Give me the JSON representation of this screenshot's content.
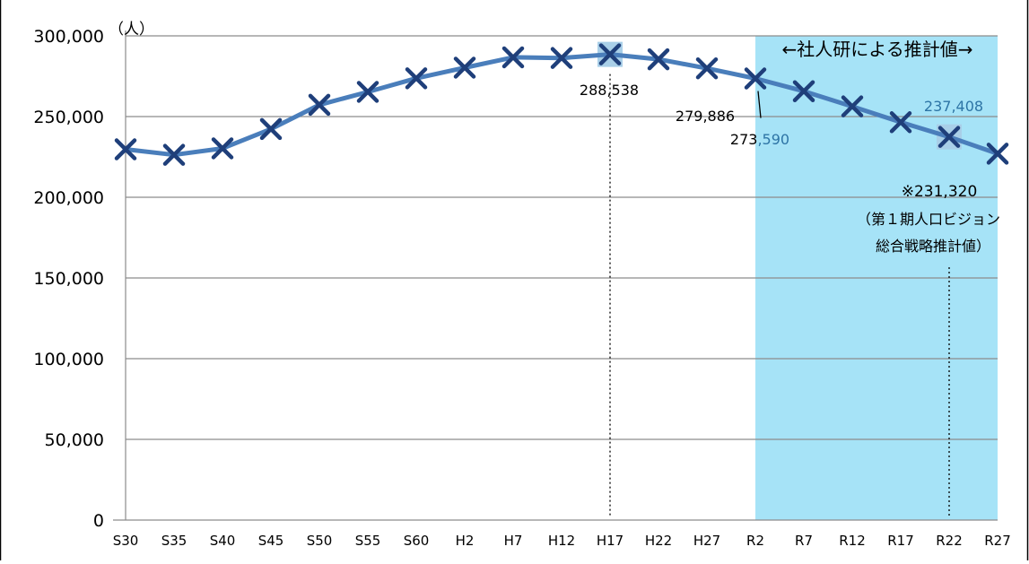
{
  "chart_data": {
    "type": "line",
    "y_unit_label": "（人）",
    "categories": [
      "S30",
      "S35",
      "S40",
      "S45",
      "S50",
      "S55",
      "S60",
      "H2",
      "H7",
      "H12",
      "H17",
      "H22",
      "H27",
      "R2",
      "R7",
      "R12",
      "R17",
      "R22",
      "R27"
    ],
    "series": [
      {
        "values": [
          229700,
          226300,
          230300,
          242300,
          257300,
          265300,
          273700,
          280300,
          286700,
          286300,
          288538,
          285500,
          279886,
          273590,
          265700,
          256300,
          246500,
          237408,
          227000
        ]
      }
    ],
    "ylim": [
      0,
      300000
    ],
    "yticks": [
      0,
      50000,
      100000,
      150000,
      200000,
      250000,
      300000
    ],
    "ytick_labels": [
      "0",
      "50,000",
      "100,000",
      "150,000",
      "200,000",
      "250,000",
      "300,000"
    ],
    "grid": true,
    "projection_label": "←社人研による推計値→",
    "projection_start_category": "R2",
    "highlighted_points": [
      "H17",
      "R22"
    ],
    "annotations": [
      {
        "label": "288,538",
        "category": "H17"
      },
      {
        "label": "279,886",
        "category": "H27"
      },
      {
        "label": "273,590",
        "category": "R2"
      },
      {
        "label": "237,408",
        "category": "R22"
      },
      {
        "label": "※231,320",
        "category": "R22"
      },
      {
        "label": "（第１期人口ビジョン",
        "category": "R22"
      },
      {
        "label": "総合戦略推計値）",
        "category": "R22"
      }
    ],
    "colors": {
      "line": "#4a7ebb",
      "marker": "#1f3f7a",
      "projection_area": "#a6e3f7",
      "highlight_box": "#a9cfe8",
      "grid": "#8c8c8c",
      "annotation_blue": "#2e75a6",
      "text": "#000000"
    }
  }
}
